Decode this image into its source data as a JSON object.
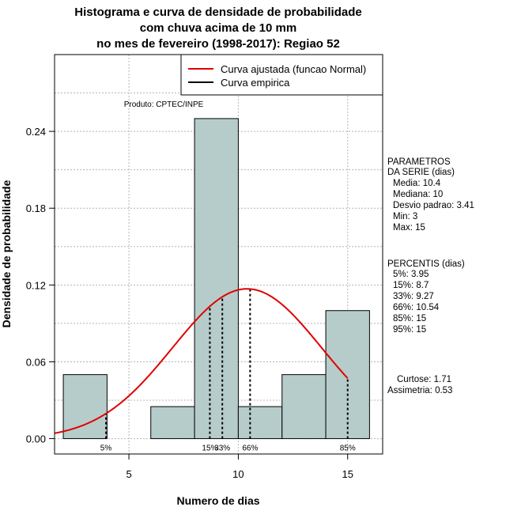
{
  "chart_data": {
    "type": "bar",
    "title_lines": [
      "Histograma e curva de densidade de probabilidade",
      "com chuva acima de 10 mm",
      "no mes de fevereiro (1998-2017): Regiao 52"
    ],
    "xlabel": "Numero de dias",
    "ylabel": "Densidade de probabilidade",
    "xlim": [
      1.6,
      16.6
    ],
    "ylim": [
      -0.012,
      0.3
    ],
    "x_ticks": [
      5,
      10,
      15
    ],
    "y_ticks": [
      0.0,
      0.06,
      0.12,
      0.18,
      0.24
    ],
    "y_tick_labels": [
      "0.00",
      "0.06",
      "0.12",
      "0.18",
      "0.24"
    ],
    "grid": true,
    "bins": [
      {
        "x0": 2,
        "x1": 4,
        "density": 0.05
      },
      {
        "x0": 4,
        "x1": 6,
        "density": 0.0
      },
      {
        "x0": 6,
        "x1": 8,
        "density": 0.025
      },
      {
        "x0": 8,
        "x1": 10,
        "density": 0.25
      },
      {
        "x0": 10,
        "x1": 12,
        "density": 0.025
      },
      {
        "x0": 12,
        "x1": 14,
        "density": 0.05
      },
      {
        "x0": 14,
        "x1": 16,
        "density": 0.1
      }
    ],
    "bar_color": "#b6cccb",
    "curve": {
      "name": "Curva ajustada (funcao Normal)",
      "mean": 10.4,
      "sd": 3.41,
      "x_range": [
        1.6,
        15
      ],
      "color": "#e00000"
    },
    "empirical": {
      "name": "Curva empirica",
      "color": "#000000"
    },
    "legend_position": "top-right",
    "percentile_lines": [
      {
        "label": "5%",
        "x": 3.95
      },
      {
        "label": "15%",
        "x": 8.7
      },
      {
        "label": "33%",
        "x": 9.27
      },
      {
        "label": "66%",
        "x": 10.54
      },
      {
        "label": "85%",
        "x": 15
      }
    ],
    "annotation": "Produto: CPTEC/INPE"
  },
  "side_panel": {
    "params_title": [
      "PARAMETROS",
      "DA SERIE (dias)"
    ],
    "params": [
      "Media: 10.4",
      "Mediana: 10",
      "Desvio padrao: 3.41",
      "Min: 3",
      "Max: 15"
    ],
    "percentis_title": "PERCENTIS (dias)",
    "percentis": [
      "5%: 3.95",
      "15%: 8.7",
      "33%: 9.27",
      "66%: 10.54",
      "85%: 15",
      "95%: 15"
    ],
    "curtose": "Curtose: 1.71",
    "assimetria": "Assimetria: 0.53"
  }
}
